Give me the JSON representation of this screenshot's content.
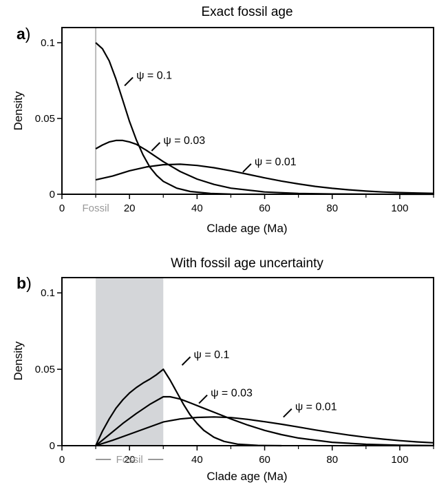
{
  "chart_data": [
    {
      "type": "line",
      "panel_letter": "a",
      "title": "Exact fossil age",
      "xlabel": "Clade age (Ma)",
      "ylabel": "Density",
      "xlim": [
        0,
        110
      ],
      "ylim": [
        0,
        0.11
      ],
      "x_ticks": [
        {
          "value": 0,
          "label": "0"
        },
        {
          "value": 20,
          "label": "20"
        },
        {
          "value": 40,
          "label": "40"
        },
        {
          "value": 60,
          "label": "60"
        },
        {
          "value": 80,
          "label": "80"
        },
        {
          "value": 100,
          "label": "100"
        }
      ],
      "x_minor_ticks": [
        10,
        30,
        50,
        70,
        90,
        110
      ],
      "y_ticks": [
        {
          "value": 0,
          "label": "0"
        },
        {
          "value": 0.05,
          "label": "0.05"
        },
        {
          "value": 0.1,
          "label": "0.1"
        }
      ],
      "fossil": {
        "label": "Fossil",
        "age": 10,
        "style": "line",
        "color": "#bbbbbb"
      },
      "series": [
        {
          "name": "ψ = 0.1",
          "color": "#000000",
          "points": [
            [
              10,
              0.1
            ],
            [
              12,
              0.096
            ],
            [
              14,
              0.088
            ],
            [
              16,
              0.076
            ],
            [
              18,
              0.062
            ],
            [
              20,
              0.048
            ],
            [
              22,
              0.036
            ],
            [
              24,
              0.026
            ],
            [
              26,
              0.018
            ],
            [
              28,
              0.0125
            ],
            [
              30,
              0.0085
            ],
            [
              34,
              0.004
            ],
            [
              38,
              0.0018
            ],
            [
              44,
              0.0005
            ],
            [
              50,
              0.0001
            ],
            [
              60,
              0
            ]
          ],
          "label_at": [
            21,
            0.078
          ]
        },
        {
          "name": "ψ = 0.03",
          "color": "#000000",
          "points": [
            [
              10,
              0.03
            ],
            [
              12,
              0.0325
            ],
            [
              14,
              0.0345
            ],
            [
              16,
              0.0355
            ],
            [
              18,
              0.0355
            ],
            [
              20,
              0.0345
            ],
            [
              22,
              0.033
            ],
            [
              25,
              0.029
            ],
            [
              30,
              0.0215
            ],
            [
              35,
              0.015
            ],
            [
              40,
              0.01
            ],
            [
              45,
              0.0065
            ],
            [
              50,
              0.004
            ],
            [
              60,
              0.0015
            ],
            [
              70,
              0.0005
            ],
            [
              80,
              0.0002
            ],
            [
              90,
              0.0001
            ],
            [
              100,
              0
            ],
            [
              110,
              0
            ]
          ],
          "label_at": [
            29,
            0.035
          ]
        },
        {
          "name": "ψ = 0.01",
          "color": "#000000",
          "points": [
            [
              10,
              0.0095
            ],
            [
              15,
              0.012
            ],
            [
              20,
              0.0155
            ],
            [
              25,
              0.018
            ],
            [
              30,
              0.0195
            ],
            [
              35,
              0.0198
            ],
            [
              40,
              0.019
            ],
            [
              45,
              0.0175
            ],
            [
              50,
              0.0155
            ],
            [
              55,
              0.0132
            ],
            [
              60,
              0.0108
            ],
            [
              65,
              0.0087
            ],
            [
              70,
              0.0068
            ],
            [
              75,
              0.0052
            ],
            [
              80,
              0.0039
            ],
            [
              85,
              0.0029
            ],
            [
              90,
              0.0021
            ],
            [
              95,
              0.0015
            ],
            [
              100,
              0.0011
            ],
            [
              105,
              0.0008
            ],
            [
              110,
              0.0006
            ]
          ],
          "label_at": [
            56,
            0.021
          ]
        }
      ]
    },
    {
      "type": "line",
      "panel_letter": "b",
      "title": "With fossil age uncertainty",
      "xlabel": "Clade age (Ma)",
      "ylabel": "Density",
      "xlim": [
        0,
        110
      ],
      "ylim": [
        0,
        0.11
      ],
      "x_ticks": [
        {
          "value": 0,
          "label": "0"
        },
        {
          "value": 20,
          "label": "20"
        },
        {
          "value": 40,
          "label": "40"
        },
        {
          "value": 60,
          "label": "60"
        },
        {
          "value": 80,
          "label": "80"
        },
        {
          "value": 100,
          "label": "100"
        }
      ],
      "x_minor_ticks": [
        10,
        30,
        50,
        70,
        90,
        110
      ],
      "y_ticks": [
        {
          "value": 0,
          "label": "0"
        },
        {
          "value": 0.05,
          "label": "0.05"
        },
        {
          "value": 0.1,
          "label": "0.1"
        }
      ],
      "fossil": {
        "label": "Fossil",
        "range": [
          10,
          30
        ],
        "style": "band",
        "color": "#d4d6d9"
      },
      "series": [
        {
          "name": "ψ = 0.1",
          "color": "#000000",
          "points": [
            [
              10,
              0
            ],
            [
              12,
              0.0095
            ],
            [
              14,
              0.0175
            ],
            [
              16,
              0.0245
            ],
            [
              18,
              0.03
            ],
            [
              20,
              0.0345
            ],
            [
              22,
              0.038
            ],
            [
              24,
              0.041
            ],
            [
              26,
              0.0435
            ],
            [
              28,
              0.0465
            ],
            [
              30,
              0.05
            ],
            [
              32,
              0.043
            ],
            [
              34,
              0.035
            ],
            [
              36,
              0.027
            ],
            [
              38,
              0.02
            ],
            [
              40,
              0.0145
            ],
            [
              42,
              0.01
            ],
            [
              45,
              0.0055
            ],
            [
              48,
              0.0028
            ],
            [
              52,
              0.001
            ],
            [
              58,
              0.0002
            ],
            [
              65,
              0
            ]
          ],
          "label_at": [
            38,
            0.059
          ]
        },
        {
          "name": "ψ = 0.03",
          "color": "#000000",
          "points": [
            [
              10,
              0
            ],
            [
              14,
              0.0072
            ],
            [
              18,
              0.0145
            ],
            [
              22,
              0.021
            ],
            [
              26,
              0.027
            ],
            [
              30,
              0.032
            ],
            [
              32,
              0.032
            ],
            [
              35,
              0.0305
            ],
            [
              38,
              0.028
            ],
            [
              42,
              0.0245
            ],
            [
              46,
              0.021
            ],
            [
              50,
              0.0175
            ],
            [
              55,
              0.0135
            ],
            [
              60,
              0.01
            ],
            [
              65,
              0.0072
            ],
            [
              70,
              0.005
            ],
            [
              80,
              0.0022
            ],
            [
              90,
              0.0009
            ],
            [
              100,
              0.0003
            ],
            [
              110,
              0.0001
            ]
          ],
          "label_at": [
            43,
            0.034
          ]
        },
        {
          "name": "ψ = 0.01",
          "color": "#000000",
          "points": [
            [
              10,
              0
            ],
            [
              15,
              0.0035
            ],
            [
              20,
              0.0075
            ],
            [
              25,
              0.0115
            ],
            [
              30,
              0.0155
            ],
            [
              35,
              0.0175
            ],
            [
              40,
              0.0185
            ],
            [
              45,
              0.0188
            ],
            [
              50,
              0.0184
            ],
            [
              55,
              0.0172
            ],
            [
              60,
              0.0157
            ],
            [
              65,
              0.014
            ],
            [
              70,
              0.0122
            ],
            [
              75,
              0.0103
            ],
            [
              80,
              0.0085
            ],
            [
              85,
              0.0069
            ],
            [
              90,
              0.0055
            ],
            [
              95,
              0.0043
            ],
            [
              100,
              0.0033
            ],
            [
              105,
              0.0025
            ],
            [
              110,
              0.0019
            ]
          ],
          "label_at": [
            68,
            0.025
          ]
        }
      ]
    }
  ]
}
